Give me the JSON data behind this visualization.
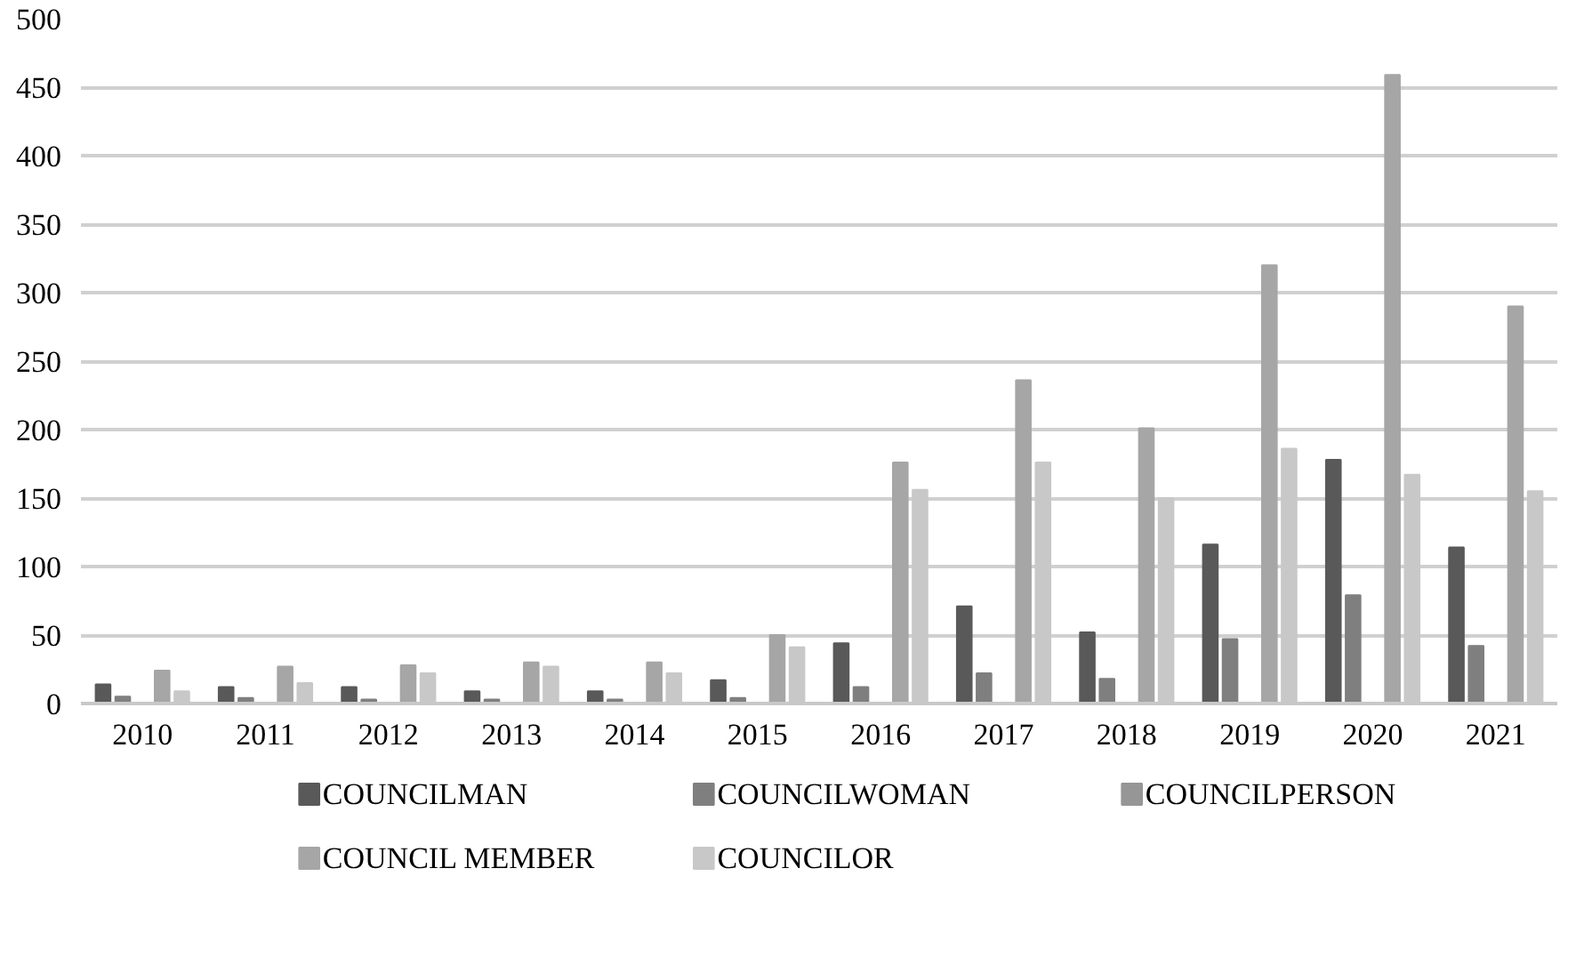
{
  "chart_data": {
    "type": "bar",
    "categories": [
      "2010",
      "2011",
      "2012",
      "2013",
      "2014",
      "2015",
      "2016",
      "2017",
      "2018",
      "2019",
      "2020",
      "2021"
    ],
    "series": [
      {
        "name": "COUNCILMAN",
        "color": "#595959",
        "values": [
          14,
          12,
          12,
          9,
          9,
          17,
          44,
          71,
          52,
          116,
          178,
          114
        ]
      },
      {
        "name": "COUNCILWOMAN",
        "color": "#7f7f7f",
        "values": [
          5,
          4,
          3,
          3,
          3,
          4,
          12,
          22,
          18,
          47,
          79,
          42
        ]
      },
      {
        "name": "COUNCILPERSON",
        "color": "#969696",
        "values": [
          0,
          0,
          0,
          0,
          0,
          0,
          0,
          0,
          0,
          0,
          0,
          0
        ]
      },
      {
        "name": "COUNCIL MEMBER",
        "color": "#a6a6a6",
        "values": [
          24,
          27,
          28,
          30,
          30,
          50,
          176,
          236,
          201,
          320,
          459,
          290
        ]
      },
      {
        "name": "COUNCILOR",
        "color": "#c8c8c8",
        "values": [
          9,
          15,
          22,
          27,
          22,
          41,
          156,
          176,
          150,
          186,
          167,
          155
        ]
      }
    ],
    "ylim": [
      0,
      500
    ],
    "yticks": [
      0,
      50,
      100,
      150,
      200,
      250,
      300,
      350,
      400,
      450,
      500
    ],
    "grid": "y",
    "legend": "bottom"
  }
}
